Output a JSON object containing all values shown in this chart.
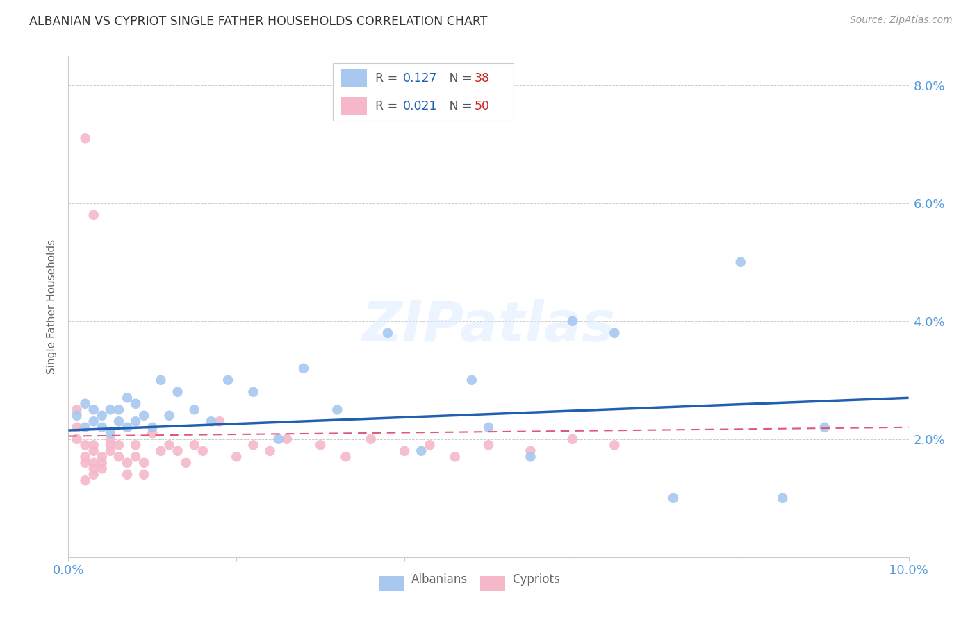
{
  "title": "ALBANIAN VS CYPRIOT SINGLE FATHER HOUSEHOLDS CORRELATION CHART",
  "source": "Source: ZipAtlas.com",
  "ylabel": "Single Father Households",
  "xlim": [
    0.0,
    0.1
  ],
  "ylim": [
    0.0,
    0.085
  ],
  "yticks": [
    0.0,
    0.02,
    0.04,
    0.06,
    0.08
  ],
  "ytick_labels": [
    "",
    "2.0%",
    "4.0%",
    "6.0%",
    "8.0%"
  ],
  "albanian_color": "#a8c8f0",
  "cypriot_color": "#f5b8c8",
  "albanian_line_color": "#2060b0",
  "cypriot_line_color": "#e05878",
  "legend_R_albanian": "0.127",
  "legend_N_albanian": "38",
  "legend_R_cypriot": "0.021",
  "legend_N_cypriot": "50",
  "albanian_x": [
    0.001,
    0.002,
    0.002,
    0.003,
    0.003,
    0.004,
    0.004,
    0.005,
    0.005,
    0.006,
    0.006,
    0.007,
    0.007,
    0.008,
    0.008,
    0.009,
    0.01,
    0.011,
    0.012,
    0.013,
    0.015,
    0.017,
    0.019,
    0.022,
    0.025,
    0.028,
    0.032,
    0.038,
    0.042,
    0.048,
    0.05,
    0.055,
    0.06,
    0.065,
    0.072,
    0.08,
    0.085,
    0.09
  ],
  "albanian_y": [
    0.024,
    0.022,
    0.026,
    0.023,
    0.025,
    0.022,
    0.024,
    0.021,
    0.025,
    0.023,
    0.025,
    0.022,
    0.027,
    0.023,
    0.026,
    0.024,
    0.022,
    0.03,
    0.024,
    0.028,
    0.025,
    0.023,
    0.03,
    0.028,
    0.02,
    0.032,
    0.025,
    0.038,
    0.018,
    0.03,
    0.022,
    0.017,
    0.04,
    0.038,
    0.01,
    0.05,
    0.01,
    0.022
  ],
  "cypriot_x": [
    0.001,
    0.001,
    0.001,
    0.002,
    0.002,
    0.002,
    0.002,
    0.003,
    0.003,
    0.003,
    0.003,
    0.003,
    0.004,
    0.004,
    0.004,
    0.005,
    0.005,
    0.005,
    0.006,
    0.006,
    0.007,
    0.007,
    0.008,
    0.008,
    0.009,
    0.009,
    0.01,
    0.011,
    0.012,
    0.013,
    0.014,
    0.015,
    0.016,
    0.018,
    0.02,
    0.022,
    0.024,
    0.026,
    0.03,
    0.033,
    0.036,
    0.04,
    0.043,
    0.046,
    0.05,
    0.055,
    0.06,
    0.065,
    0.002,
    0.003
  ],
  "cypriot_y": [
    0.025,
    0.02,
    0.022,
    0.013,
    0.016,
    0.017,
    0.019,
    0.014,
    0.015,
    0.016,
    0.019,
    0.018,
    0.017,
    0.015,
    0.016,
    0.019,
    0.02,
    0.018,
    0.017,
    0.019,
    0.014,
    0.016,
    0.017,
    0.019,
    0.014,
    0.016,
    0.021,
    0.018,
    0.019,
    0.018,
    0.016,
    0.019,
    0.018,
    0.023,
    0.017,
    0.019,
    0.018,
    0.02,
    0.019,
    0.017,
    0.02,
    0.018,
    0.019,
    0.017,
    0.019,
    0.018,
    0.02,
    0.019,
    0.071,
    0.058
  ],
  "watermark_text": "ZIPatlas",
  "background_color": "#ffffff",
  "grid_color": "#cccccc",
  "title_color": "#333333",
  "axis_color": "#5599dd",
  "label_color": "#666666"
}
